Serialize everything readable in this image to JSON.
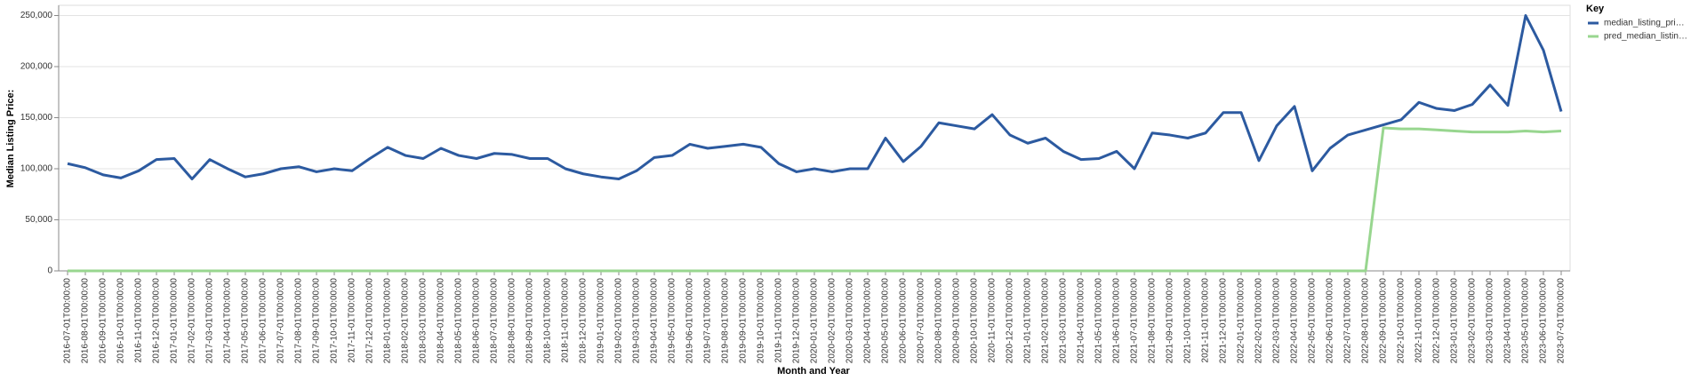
{
  "chart_data": {
    "type": "line",
    "x_label": "Month and Year",
    "y_label": "Median Listing Price:",
    "legend_title": "Key",
    "legend_position": "right",
    "grid": true,
    "categories": [
      "2016-07-01T00:00:00",
      "2016-08-01T00:00:00",
      "2016-09-01T00:00:00",
      "2016-10-01T00:00:00",
      "2016-11-01T00:00:00",
      "2016-12-01T00:00:00",
      "2017-01-01T00:00:00",
      "2017-02-01T00:00:00",
      "2017-03-01T00:00:00",
      "2017-04-01T00:00:00",
      "2017-05-01T00:00:00",
      "2017-06-01T00:00:00",
      "2017-07-01T00:00:00",
      "2017-08-01T00:00:00",
      "2017-09-01T00:00:00",
      "2017-10-01T00:00:00",
      "2017-11-01T00:00:00",
      "2017-12-01T00:00:00",
      "2018-01-01T00:00:00",
      "2018-02-01T00:00:00",
      "2018-03-01T00:00:00",
      "2018-04-01T00:00:00",
      "2018-05-01T00:00:00",
      "2018-06-01T00:00:00",
      "2018-07-01T00:00:00",
      "2018-08-01T00:00:00",
      "2018-09-01T00:00:00",
      "2018-10-01T00:00:00",
      "2018-11-01T00:00:00",
      "2018-12-01T00:00:00",
      "2019-01-01T00:00:00",
      "2019-02-01T00:00:00",
      "2019-03-01T00:00:00",
      "2019-04-01T00:00:00",
      "2019-05-01T00:00:00",
      "2019-06-01T00:00:00",
      "2019-07-01T00:00:00",
      "2019-08-01T00:00:00",
      "2019-09-01T00:00:00",
      "2019-10-01T00:00:00",
      "2019-11-01T00:00:00",
      "2019-12-01T00:00:00",
      "2020-01-01T00:00:00",
      "2020-02-01T00:00:00",
      "2020-03-01T00:00:00",
      "2020-04-01T00:00:00",
      "2020-05-01T00:00:00",
      "2020-06-01T00:00:00",
      "2020-07-01T00:00:00",
      "2020-08-01T00:00:00",
      "2020-09-01T00:00:00",
      "2020-10-01T00:00:00",
      "2020-11-01T00:00:00",
      "2020-12-01T00:00:00",
      "2021-01-01T00:00:00",
      "2021-02-01T00:00:00",
      "2021-03-01T00:00:00",
      "2021-04-01T00:00:00",
      "2021-05-01T00:00:00",
      "2021-06-01T00:00:00",
      "2021-07-01T00:00:00",
      "2021-08-01T00:00:00",
      "2021-09-01T00:00:00",
      "2021-10-01T00:00:00",
      "2021-11-01T00:00:00",
      "2021-12-01T00:00:00",
      "2022-01-01T00:00:00",
      "2022-02-01T00:00:00",
      "2022-03-01T00:00:00",
      "2022-04-01T00:00:00",
      "2022-05-01T00:00:00",
      "2022-06-01T00:00:00",
      "2022-07-01T00:00:00",
      "2022-08-01T00:00:00",
      "2022-09-01T00:00:00",
      "2022-10-01T00:00:00",
      "2022-11-01T00:00:00",
      "2022-12-01T00:00:00",
      "2023-01-01T00:00:00",
      "2023-02-01T00:00:00",
      "2023-03-01T00:00:00",
      "2023-04-01T00:00:00",
      "2023-05-01T00:00:00",
      "2023-06-01T00:00:00",
      "2023-07-01T00:00:00"
    ],
    "series": [
      {
        "name": "median_listing_pri…",
        "color": "#2c5aa0",
        "values": [
          105000,
          101000,
          94000,
          91000,
          98000,
          109000,
          110000,
          90000,
          109000,
          100000,
          92000,
          95000,
          100000,
          102000,
          97000,
          100000,
          98000,
          110000,
          121000,
          113000,
          110000,
          120000,
          113000,
          110000,
          115000,
          114000,
          110000,
          110000,
          100000,
          95000,
          92000,
          90000,
          98000,
          111000,
          113000,
          124000,
          120000,
          122000,
          124000,
          121000,
          105000,
          97000,
          100000,
          97000,
          100000,
          100000,
          130000,
          107000,
          122000,
          145000,
          142000,
          139000,
          153000,
          133000,
          125000,
          130000,
          117000,
          109000,
          110000,
          117000,
          100000,
          135000,
          133000,
          130000,
          135000,
          155000,
          155000,
          108000,
          142000,
          161000,
          98000,
          120000,
          133000,
          138000,
          143000,
          148000,
          165000,
          159000,
          157000,
          163000,
          182000,
          162000,
          250000,
          216000,
          156000
        ]
      },
      {
        "name": "pred_median_listin…",
        "color": "#98d68f",
        "values": [
          0,
          0,
          0,
          0,
          0,
          0,
          0,
          0,
          0,
          0,
          0,
          0,
          0,
          0,
          0,
          0,
          0,
          0,
          0,
          0,
          0,
          0,
          0,
          0,
          0,
          0,
          0,
          0,
          0,
          0,
          0,
          0,
          0,
          0,
          0,
          0,
          0,
          0,
          0,
          0,
          0,
          0,
          0,
          0,
          0,
          0,
          0,
          0,
          0,
          0,
          0,
          0,
          0,
          0,
          0,
          0,
          0,
          0,
          0,
          0,
          0,
          0,
          0,
          0,
          0,
          0,
          0,
          0,
          0,
          0,
          0,
          0,
          0,
          0,
          140000,
          139000,
          139000,
          138000,
          137000,
          136000,
          136000,
          136000,
          137000,
          136000,
          137000
        ]
      }
    ],
    "ylim": [
      0,
      260000
    ],
    "yticks": [
      0,
      {
        "value": 50000,
        "label": "50,000"
      },
      {
        "value": 100000,
        "label": "100,000"
      },
      {
        "value": 150000,
        "label": "150,000"
      },
      {
        "value": 200000,
        "label": "200,000"
      },
      {
        "value": 250000,
        "label": "250,000"
      }
    ]
  }
}
